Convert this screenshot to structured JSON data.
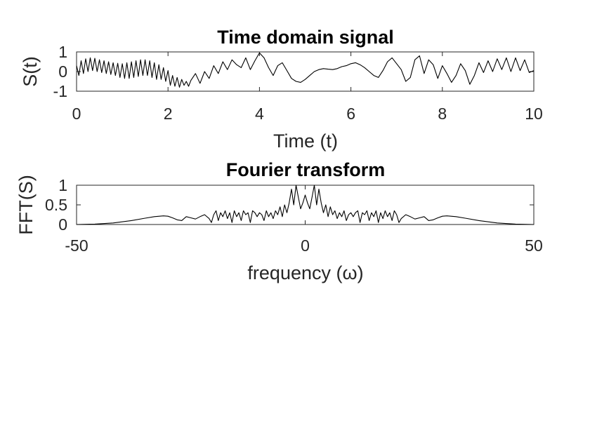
{
  "chart_data": [
    {
      "type": "line",
      "title": "Time domain signal",
      "xlabel": "Time (t)",
      "ylabel": "S(t)",
      "xlim": [
        0,
        10
      ],
      "ylim": [
        -1,
        1
      ],
      "xticks": [
        0,
        2,
        4,
        6,
        8,
        10
      ],
      "yticks": [
        -1,
        0,
        1
      ],
      "xtick_labels": [
        "0",
        "2",
        "4",
        "6",
        "8",
        "10"
      ],
      "ytick_labels": [
        "-1",
        "0",
        "1"
      ],
      "grid": false,
      "series": [
        {
          "color": "#000000",
          "x": [
            0,
            0.05,
            0.1,
            0.15,
            0.2,
            0.25,
            0.3,
            0.35,
            0.4,
            0.45,
            0.5,
            0.55,
            0.6,
            0.65,
            0.7,
            0.75,
            0.8,
            0.85,
            0.9,
            0.95,
            1.0,
            1.05,
            1.1,
            1.15,
            1.2,
            1.25,
            1.3,
            1.35,
            1.4,
            1.45,
            1.5,
            1.55,
            1.6,
            1.65,
            1.7,
            1.75,
            1.8,
            1.85,
            1.9,
            1.95,
            2.0,
            2.05,
            2.1,
            2.15,
            2.2,
            2.25,
            2.3,
            2.35,
            2.4,
            2.45,
            2.5,
            2.6,
            2.7,
            2.8,
            2.9,
            3.0,
            3.1,
            3.2,
            3.3,
            3.4,
            3.5,
            3.6,
            3.7,
            3.8,
            3.9,
            4.0,
            4.1,
            4.2,
            4.3,
            4.4,
            4.5,
            4.6,
            4.7,
            4.8,
            4.9,
            5.0,
            5.1,
            5.2,
            5.3,
            5.4,
            5.5,
            5.6,
            5.7,
            5.8,
            5.9,
            6.0,
            6.1,
            6.2,
            6.3,
            6.4,
            6.5,
            6.6,
            6.7,
            6.8,
            6.9,
            7.0,
            7.1,
            7.2,
            7.3,
            7.4,
            7.5,
            7.6,
            7.7,
            7.8,
            7.9,
            8.0,
            8.1,
            8.2,
            8.3,
            8.4,
            8.5,
            8.6,
            8.7,
            8.8,
            8.9,
            9.0,
            9.1,
            9.2,
            9.3,
            9.4,
            9.5,
            9.6,
            9.7,
            9.8,
            9.9,
            10.0
          ],
          "values": [
            0.3,
            -0.2,
            0.55,
            -0.1,
            0.65,
            0.0,
            0.7,
            0.05,
            0.68,
            0.0,
            0.6,
            -0.05,
            0.55,
            -0.1,
            0.5,
            -0.15,
            0.45,
            -0.2,
            0.42,
            -0.3,
            0.4,
            -0.35,
            0.45,
            -0.35,
            0.5,
            -0.3,
            0.55,
            -0.25,
            0.6,
            -0.2,
            0.6,
            -0.2,
            0.55,
            -0.3,
            0.45,
            -0.4,
            0.35,
            -0.4,
            0.2,
            -0.5,
            0.05,
            -0.7,
            -0.2,
            -0.75,
            -0.3,
            -0.8,
            -0.4,
            -0.7,
            -0.5,
            -0.75,
            -0.45,
            -0.1,
            -0.6,
            0.0,
            -0.35,
            0.3,
            -0.1,
            0.5,
            0.1,
            0.6,
            0.35,
            0.2,
            0.7,
            0.1,
            0.55,
            0.95,
            0.7,
            0.2,
            -0.2,
            0.3,
            0.45,
            0.05,
            -0.35,
            -0.5,
            -0.55,
            -0.4,
            -0.2,
            0.0,
            0.1,
            0.15,
            0.12,
            0.1,
            0.15,
            0.25,
            0.3,
            0.4,
            0.45,
            0.35,
            0.2,
            0.0,
            -0.2,
            -0.3,
            0.05,
            0.5,
            0.7,
            0.4,
            0.1,
            -0.5,
            -0.3,
            0.6,
            0.8,
            -0.1,
            0.6,
            0.35,
            -0.35,
            0.3,
            -0.1,
            -0.55,
            -0.2,
            0.4,
            0.05,
            -0.65,
            -0.2,
            0.45,
            -0.05,
            0.55,
            0.0,
            0.65,
            0.1,
            0.7,
            0.0,
            0.7,
            0.05,
            0.6,
            -0.05,
            0.05
          ]
        }
      ]
    },
    {
      "type": "line",
      "title": "Fourier transform",
      "xlabel": "frequency (ω)",
      "ylabel": "FFT(S)",
      "xlim": [
        -50,
        50
      ],
      "ylim": [
        0,
        1
      ],
      "xticks": [
        -50,
        0,
        50
      ],
      "yticks": [
        0,
        0.5,
        1
      ],
      "xtick_labels": [
        "-50",
        "0",
        "50"
      ],
      "ytick_labels": [
        "0",
        "0.5",
        "1"
      ],
      "grid": false,
      "series": [
        {
          "color": "#000000",
          "x": [
            -50,
            -46,
            -42,
            -38,
            -35,
            -33,
            -31,
            -30,
            -29,
            -28,
            -27,
            -26.5,
            -26,
            -25,
            -24,
            -23,
            -22,
            -21,
            -20.5,
            -20,
            -19.5,
            -19,
            -18.5,
            -18,
            -17.5,
            -17,
            -16.5,
            -16,
            -15.5,
            -15,
            -14.5,
            -14,
            -13.5,
            -13,
            -12.5,
            -12,
            -11.5,
            -11,
            -10.5,
            -10,
            -9.5,
            -9,
            -8.5,
            -8,
            -7.5,
            -7,
            -6.5,
            -6,
            -5.5,
            -5,
            -4.5,
            -4,
            -3.5,
            -3,
            -2.5,
            -2,
            -1.5,
            -1,
            -0.5,
            0,
            0.5,
            1,
            1.5,
            2,
            2.5,
            3,
            3.5,
            4,
            4.5,
            5,
            5.5,
            6,
            6.5,
            7,
            7.5,
            8,
            8.5,
            9,
            9.5,
            10,
            10.5,
            11,
            11.5,
            12,
            12.5,
            13,
            13.5,
            14,
            14.5,
            15,
            15.5,
            16,
            16.5,
            17,
            17.5,
            18,
            18.5,
            19,
            19.5,
            20,
            20.5,
            21,
            22,
            23,
            24,
            25,
            26,
            26.5,
            27,
            28,
            29,
            30,
            31,
            33,
            35,
            38,
            42,
            46,
            50
          ],
          "values": [
            0.0,
            0.01,
            0.04,
            0.1,
            0.16,
            0.2,
            0.22,
            0.21,
            0.17,
            0.12,
            0.1,
            0.15,
            0.2,
            0.17,
            0.14,
            0.2,
            0.25,
            0.15,
            0.05,
            0.25,
            0.35,
            0.1,
            0.3,
            0.2,
            0.35,
            0.15,
            0.3,
            0.05,
            0.35,
            0.2,
            0.3,
            0.1,
            0.35,
            0.25,
            0.3,
            0.05,
            0.35,
            0.3,
            0.2,
            0.3,
            0.25,
            0.1,
            0.35,
            0.2,
            0.3,
            0.15,
            0.35,
            0.25,
            0.45,
            0.2,
            0.5,
            0.3,
            0.55,
            0.9,
            0.5,
            1.0,
            0.7,
            0.4,
            0.55,
            0.75,
            0.55,
            0.4,
            0.7,
            1.0,
            0.5,
            0.9,
            0.55,
            0.3,
            0.5,
            0.2,
            0.45,
            0.25,
            0.35,
            0.15,
            0.3,
            0.2,
            0.35,
            0.1,
            0.25,
            0.3,
            0.2,
            0.3,
            0.35,
            0.05,
            0.3,
            0.25,
            0.35,
            0.1,
            0.3,
            0.2,
            0.35,
            0.05,
            0.3,
            0.15,
            0.35,
            0.2,
            0.3,
            0.1,
            0.35,
            0.25,
            0.05,
            0.15,
            0.25,
            0.2,
            0.14,
            0.17,
            0.2,
            0.15,
            0.1,
            0.12,
            0.17,
            0.21,
            0.22,
            0.2,
            0.16,
            0.1,
            0.04,
            0.01,
            0.0
          ]
        }
      ]
    }
  ]
}
